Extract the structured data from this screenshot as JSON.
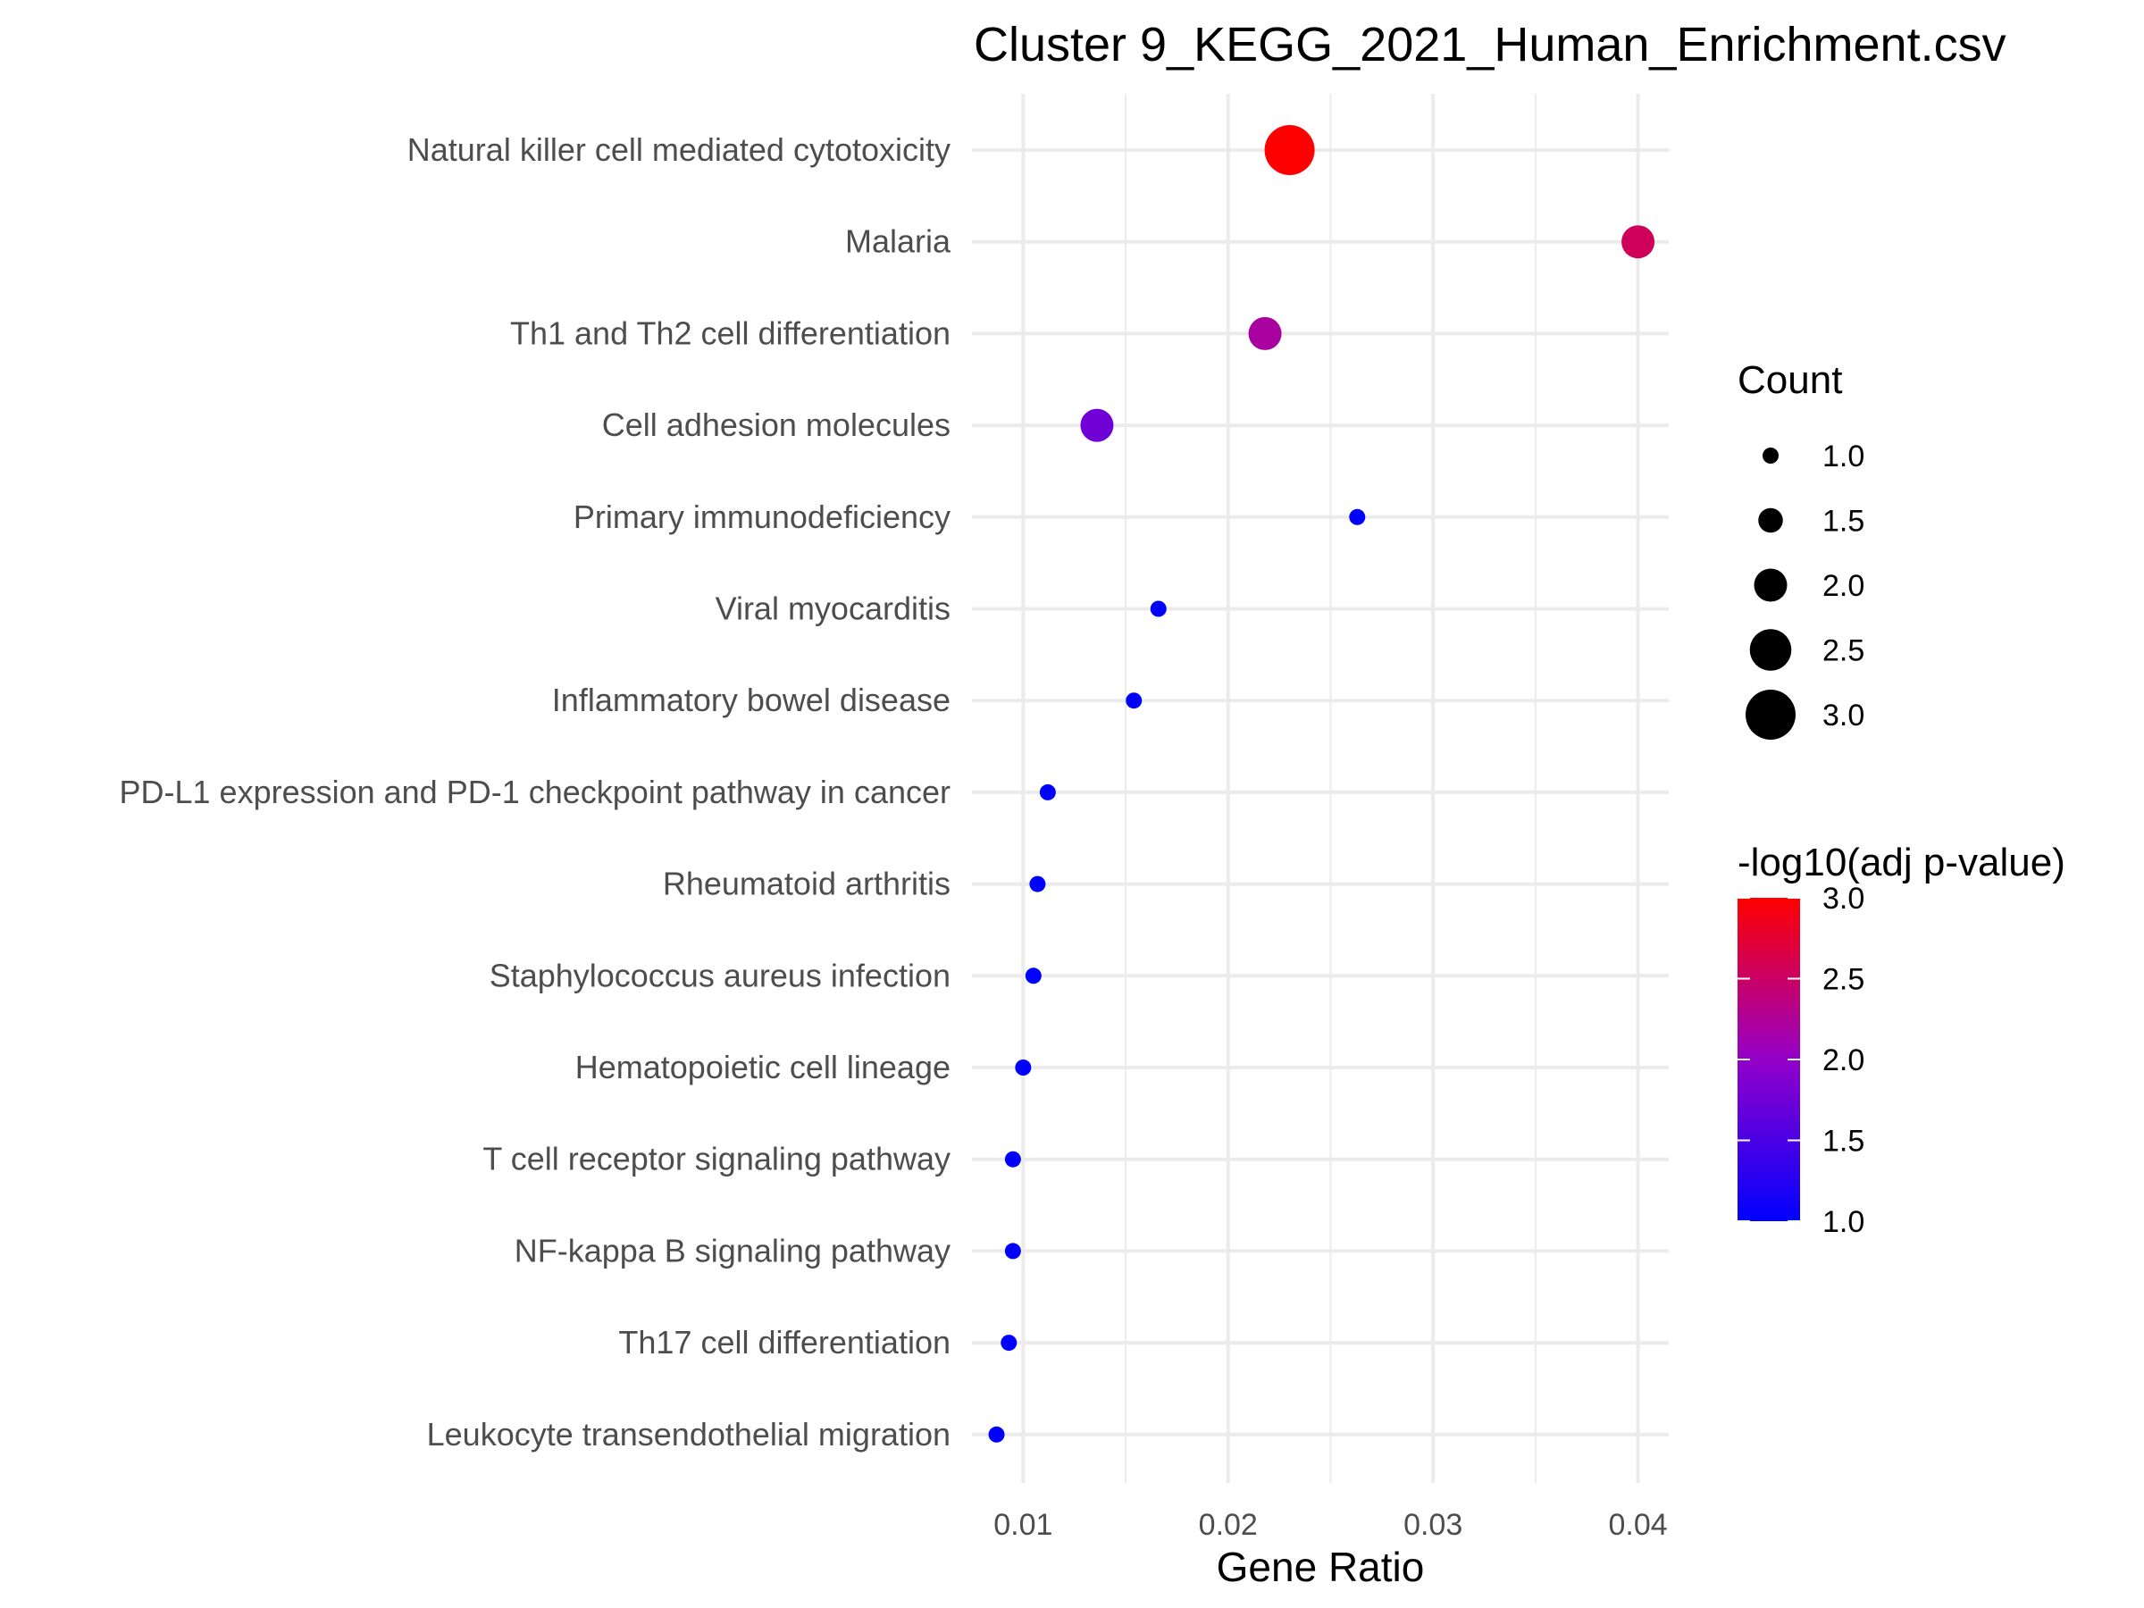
{
  "chart_data": {
    "type": "scatter",
    "title": "Cluster 9_KEGG_2021_Human_Enrichment.csv",
    "xlabel": "Gene Ratio",
    "ylabel": "",
    "xlim": [
      0.0075,
      0.0415
    ],
    "xticks": [
      0.01,
      0.02,
      0.03,
      0.04
    ],
    "xtick_labels": [
      "0.01",
      "0.02",
      "0.03",
      "0.04"
    ],
    "grid": true,
    "points": [
      {
        "term": "Natural killer cell mediated cytotoxicity",
        "gene_ratio": 0.023,
        "count": 3,
        "neg_log10_adj_p": 3.0
      },
      {
        "term": "Malaria",
        "gene_ratio": 0.04,
        "count": 2,
        "neg_log10_adj_p": 2.55
      },
      {
        "term": "Th1 and Th2 cell differentiation",
        "gene_ratio": 0.0218,
        "count": 2,
        "neg_log10_adj_p": 2.2
      },
      {
        "term": "Cell adhesion molecules",
        "gene_ratio": 0.0136,
        "count": 2,
        "neg_log10_adj_p": 1.75
      },
      {
        "term": "Primary immunodeficiency",
        "gene_ratio": 0.0263,
        "count": 1,
        "neg_log10_adj_p": 1.0
      },
      {
        "term": "Viral myocarditis",
        "gene_ratio": 0.0166,
        "count": 1,
        "neg_log10_adj_p": 1.0
      },
      {
        "term": "Inflammatory bowel disease",
        "gene_ratio": 0.0154,
        "count": 1,
        "neg_log10_adj_p": 1.0
      },
      {
        "term": "PD-L1 expression and PD-1 checkpoint pathway in cancer",
        "gene_ratio": 0.0112,
        "count": 1,
        "neg_log10_adj_p": 1.0
      },
      {
        "term": "Rheumatoid arthritis",
        "gene_ratio": 0.0107,
        "count": 1,
        "neg_log10_adj_p": 1.0
      },
      {
        "term": "Staphylococcus aureus infection",
        "gene_ratio": 0.0105,
        "count": 1,
        "neg_log10_adj_p": 1.0
      },
      {
        "term": "Hematopoietic cell lineage",
        "gene_ratio": 0.01,
        "count": 1,
        "neg_log10_adj_p": 1.0
      },
      {
        "term": "T cell receptor signaling pathway",
        "gene_ratio": 0.0095,
        "count": 1,
        "neg_log10_adj_p": 1.0
      },
      {
        "term": "NF-kappa B signaling pathway",
        "gene_ratio": 0.0095,
        "count": 1,
        "neg_log10_adj_p": 1.0
      },
      {
        "term": "Th17 cell differentiation",
        "gene_ratio": 0.0093,
        "count": 1,
        "neg_log10_adj_p": 1.0
      },
      {
        "term": "Leukocyte transendothelial migration",
        "gene_ratio": 0.0087,
        "count": 1,
        "neg_log10_adj_p": 1.0
      }
    ],
    "legend": {
      "placement": "right",
      "size": {
        "title": "Count",
        "values": [
          1.0,
          1.5,
          2.0,
          2.5,
          3.0
        ],
        "labels": [
          "1.0",
          "1.5",
          "2.0",
          "2.5",
          "3.0"
        ]
      },
      "color": {
        "title": "-log10(adj p-value)",
        "min": 1.0,
        "max": 3.0,
        "low_color": "#0000ff",
        "high_color": "#ff0000",
        "ticks": [
          1.0,
          1.5,
          2.0,
          2.5,
          3.0
        ],
        "labels": [
          "1.0",
          "1.5",
          "2.0",
          "2.5",
          "3.0"
        ]
      }
    }
  }
}
